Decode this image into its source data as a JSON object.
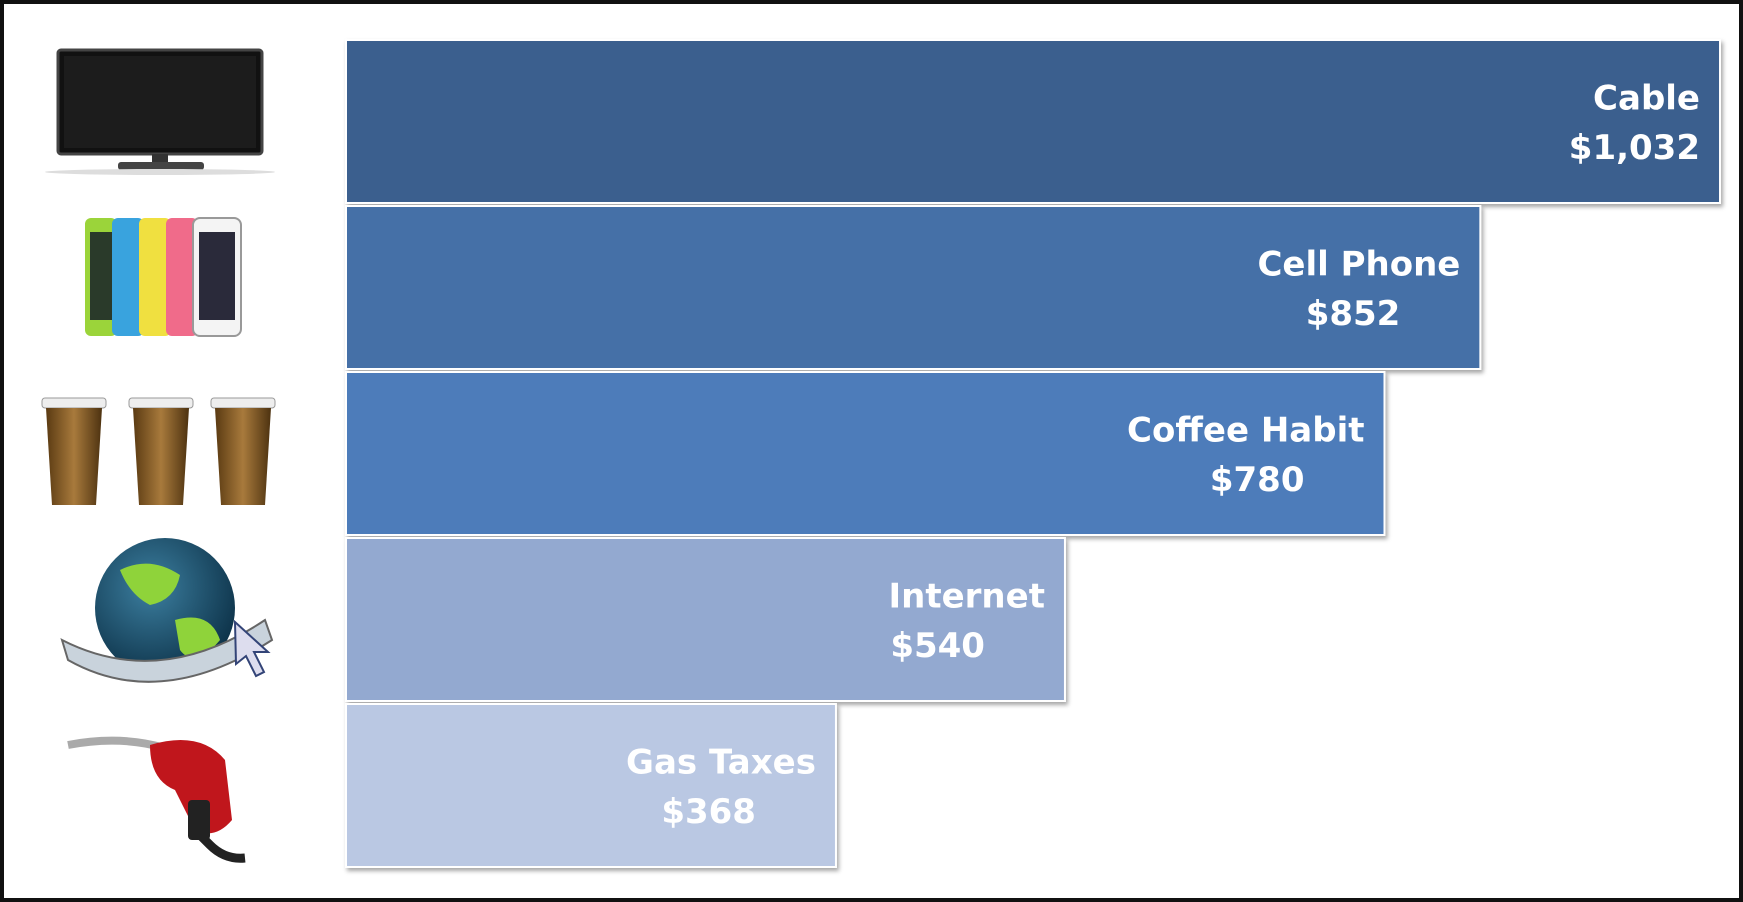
{
  "chart_data": {
    "type": "bar",
    "orientation": "horizontal",
    "categories": [
      "Cable",
      "Cell Phone",
      "Coffee Habit",
      "Internet",
      "Gas Taxes"
    ],
    "values": [
      1032,
      852,
      780,
      540,
      368
    ],
    "value_labels": [
      "$1,032",
      "$852",
      "$780",
      "$540",
      "$368"
    ],
    "colors": [
      "#3b5e8e",
      "#4470a7",
      "#4d7cba",
      "#93a9d0",
      "#bac8e3"
    ]
  }
}
